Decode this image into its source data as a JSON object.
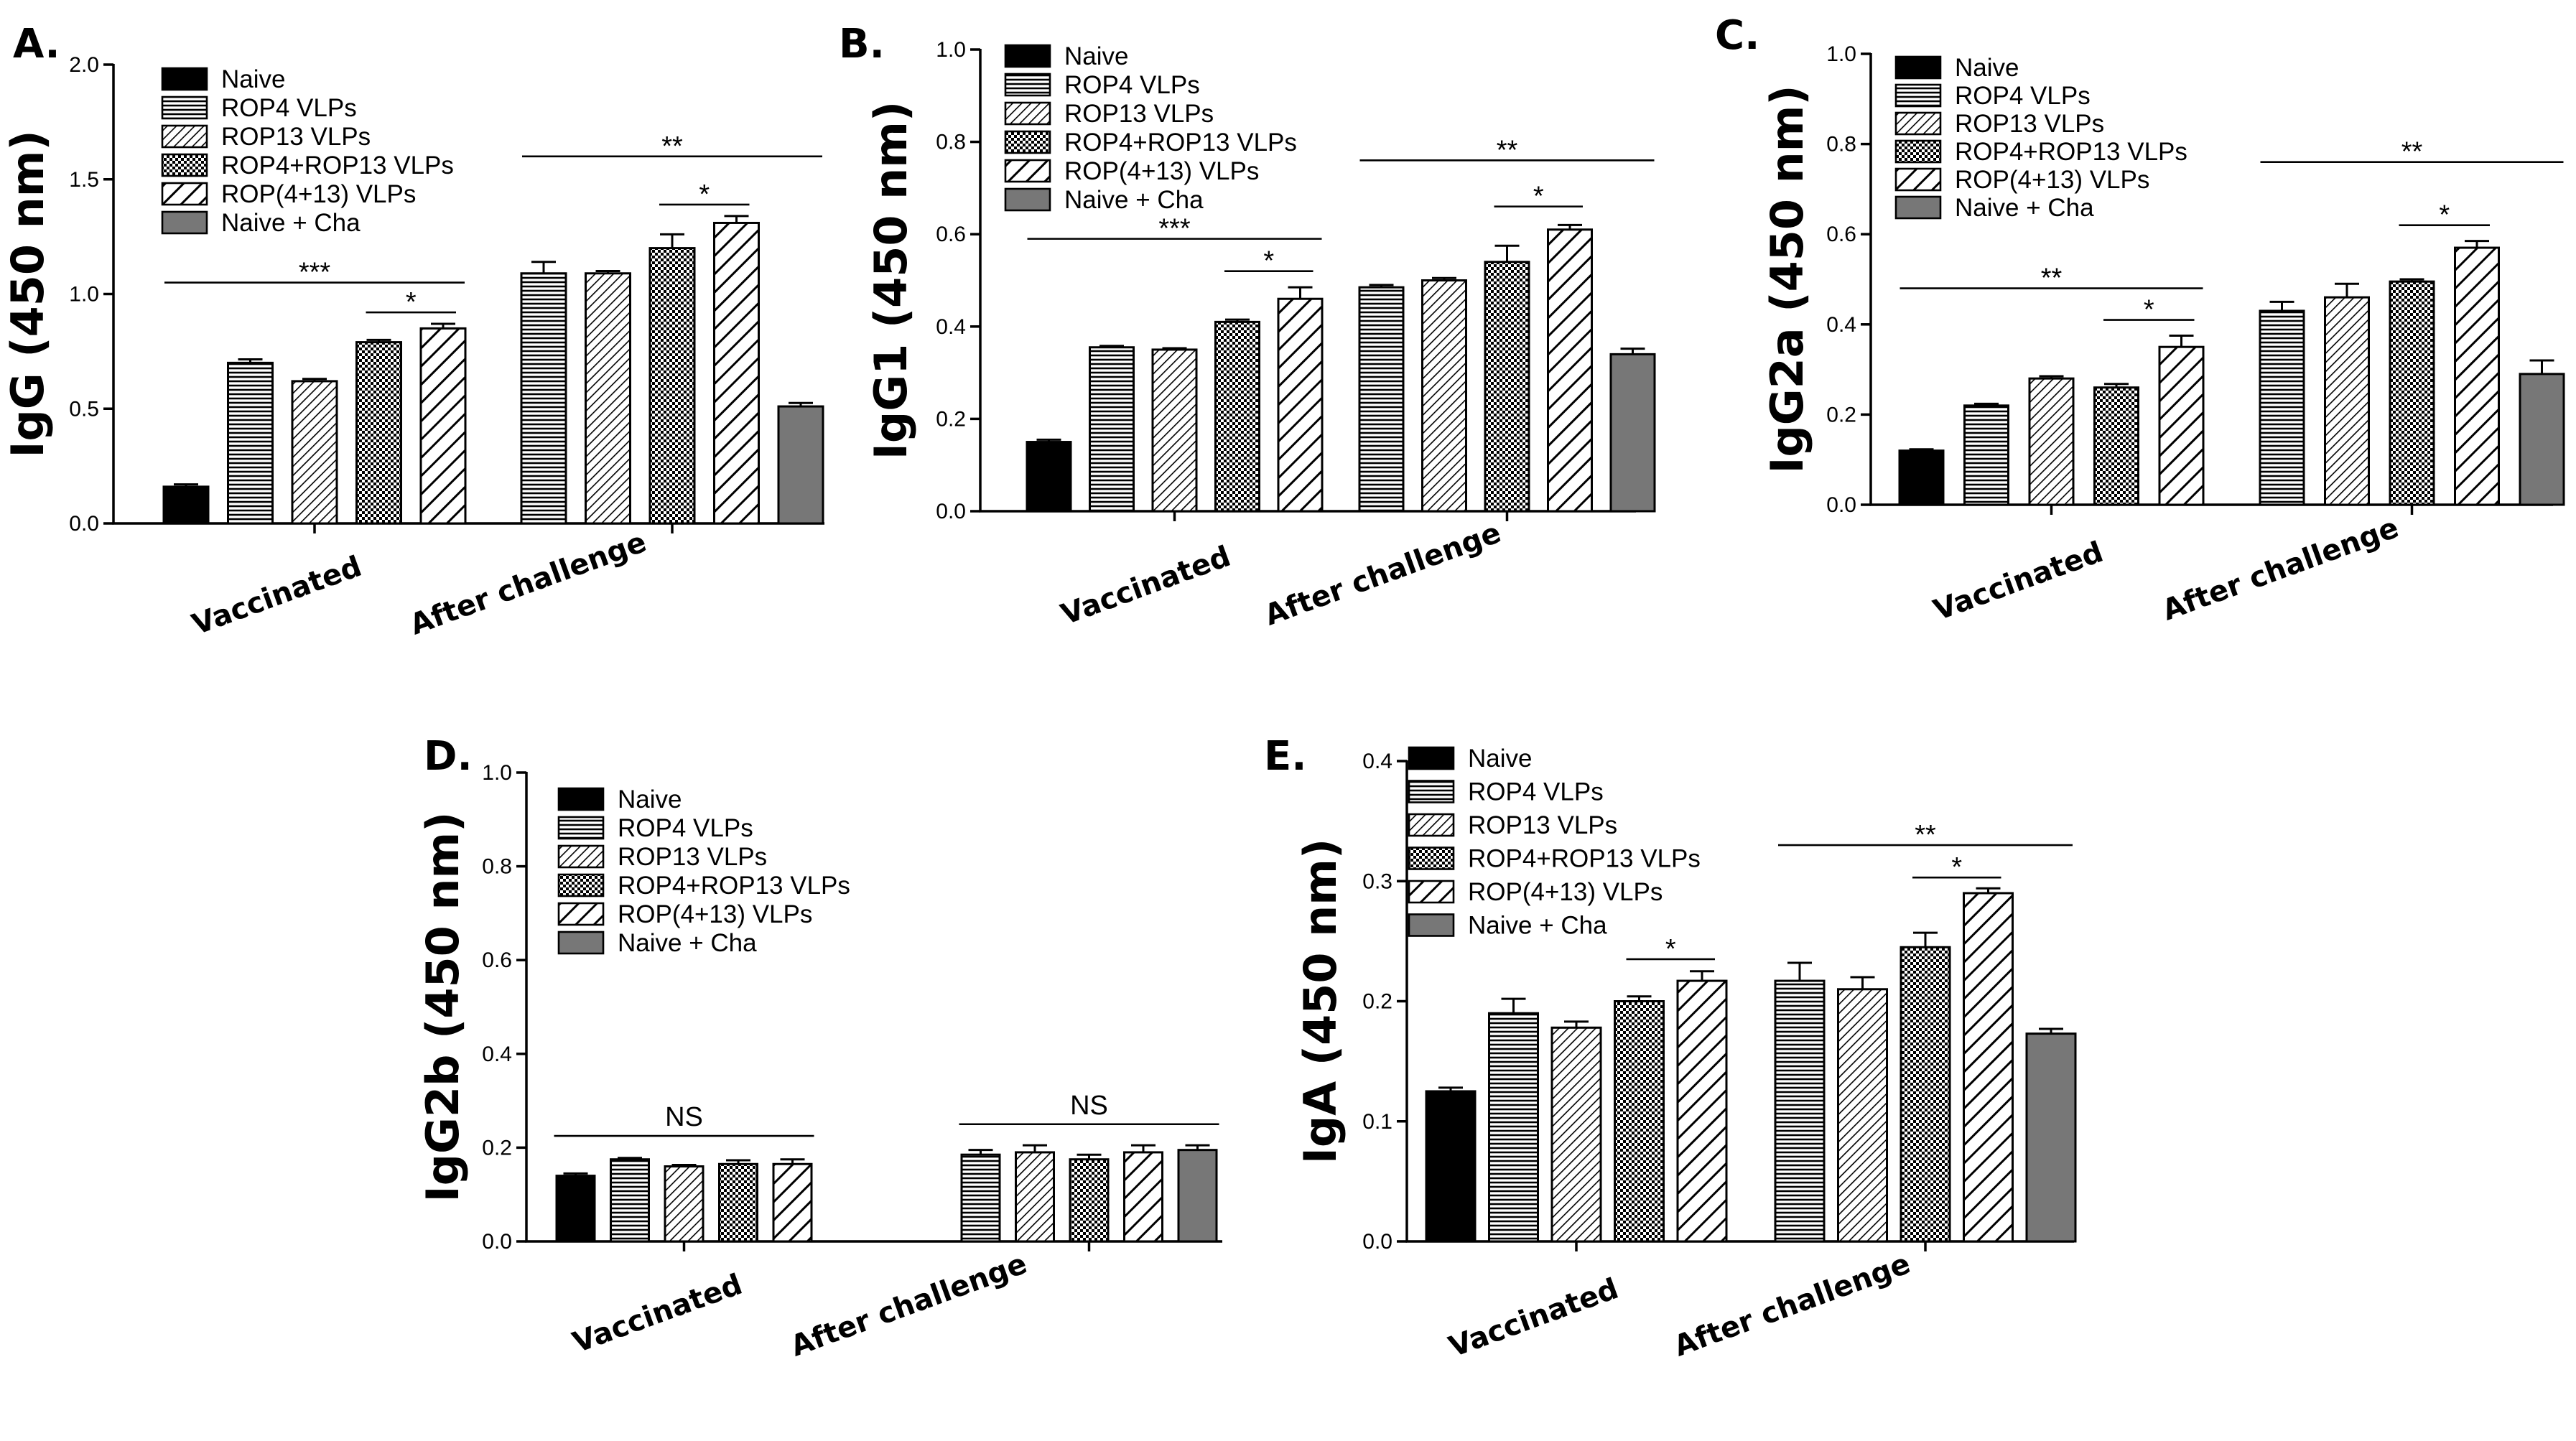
{
  "colors": {
    "naive": "#000000",
    "naive_cha": "#777777",
    "stroke": "#000000"
  },
  "patterns": [
    "solid-black",
    "horizontal-lines",
    "diagonal-fine",
    "crosshatch",
    "diagonal-wide",
    "solid-gray"
  ],
  "chart_data": [
    {
      "type": "bar",
      "panel_label": "A.",
      "ylabel": "IgG (450 nm)",
      "ylim": [
        0,
        2.0
      ],
      "yticks": [
        "0.0",
        "0.5",
        "1.0",
        "1.5",
        "2.0"
      ],
      "yticks_values": [
        0,
        0.5,
        1.0,
        1.5,
        2.0
      ],
      "categories": [
        "Vaccinated",
        "After challenge"
      ],
      "legend": [
        "Naive",
        "ROP4 VLPs",
        "ROP13 VLPs",
        "ROP4+ROP13 VLPs",
        "ROP(4+13) VLPs",
        "Naive + Cha"
      ],
      "groups": [
        {
          "bars": [
            {
              "series": 0,
              "value": 0.16,
              "err": 0.01
            },
            {
              "series": 1,
              "value": 0.7,
              "err": 0.015
            },
            {
              "series": 2,
              "value": 0.62,
              "err": 0.01
            },
            {
              "series": 3,
              "value": 0.79,
              "err": 0.01
            },
            {
              "series": 4,
              "value": 0.85,
              "err": 0.02
            }
          ]
        },
        {
          "bars": [
            {
              "series": 1,
              "value": 1.09,
              "err": 0.05
            },
            {
              "series": 2,
              "value": 1.09,
              "err": 0.01
            },
            {
              "series": 3,
              "value": 1.2,
              "err": 0.06
            },
            {
              "series": 4,
              "value": 1.31,
              "err": 0.03
            },
            {
              "series": 5,
              "value": 0.51,
              "err": 0.015
            }
          ]
        }
      ],
      "annotations": [
        {
          "text": "***",
          "group": 0,
          "from": 0,
          "to": 4,
          "y": 1.05
        },
        {
          "text": "*",
          "group": 0,
          "from": 3,
          "to": 4,
          "y": 0.92
        },
        {
          "text": "**",
          "group": 1,
          "from": 0,
          "to": 4,
          "y": 1.6
        },
        {
          "text": "*",
          "group": 1,
          "from": 2,
          "to": 3,
          "y": 1.39
        }
      ]
    },
    {
      "type": "bar",
      "panel_label": "B.",
      "ylabel": "IgG1 (450 nm)",
      "ylim": [
        0,
        1.0
      ],
      "yticks": [
        "0.0",
        "0.2",
        "0.4",
        "0.6",
        "0.8",
        "1.0"
      ],
      "yticks_values": [
        0,
        0.2,
        0.4,
        0.6,
        0.8,
        1.0
      ],
      "categories": [
        "Vaccinated",
        "After challenge"
      ],
      "legend": [
        "Naive",
        "ROP4 VLPs",
        "ROP13 VLPs",
        "ROP4+ROP13 VLPs",
        "ROP(4+13) VLPs",
        "Naive + Cha"
      ],
      "groups": [
        {
          "bars": [
            {
              "series": 0,
              "value": 0.15,
              "err": 0.005
            },
            {
              "series": 1,
              "value": 0.355,
              "err": 0.003
            },
            {
              "series": 2,
              "value": 0.35,
              "err": 0.003
            },
            {
              "series": 3,
              "value": 0.41,
              "err": 0.005
            },
            {
              "series": 4,
              "value": 0.46,
              "err": 0.025
            }
          ]
        },
        {
          "bars": [
            {
              "series": 1,
              "value": 0.485,
              "err": 0.005
            },
            {
              "series": 2,
              "value": 0.5,
              "err": 0.005
            },
            {
              "series": 3,
              "value": 0.54,
              "err": 0.035
            },
            {
              "series": 4,
              "value": 0.61,
              "err": 0.01
            },
            {
              "series": 5,
              "value": 0.34,
              "err": 0.012
            }
          ]
        }
      ],
      "annotations": [
        {
          "text": "***",
          "group": 0,
          "from": 0,
          "to": 4,
          "y": 0.59
        },
        {
          "text": "*",
          "group": 0,
          "from": 3,
          "to": 4,
          "y": 0.52
        },
        {
          "text": "**",
          "group": 1,
          "from": 0,
          "to": 4,
          "y": 0.76
        },
        {
          "text": "*",
          "group": 1,
          "from": 2,
          "to": 3,
          "y": 0.66
        }
      ]
    },
    {
      "type": "bar",
      "panel_label": "C.",
      "ylabel": "IgG2a (450 nm)",
      "ylim": [
        0,
        1.0
      ],
      "yticks": [
        "0.0",
        "0.2",
        "0.4",
        "0.6",
        "0.8",
        "1.0"
      ],
      "yticks_values": [
        0,
        0.2,
        0.4,
        0.6,
        0.8,
        1.0
      ],
      "categories": [
        "Vaccinated",
        "After challenge"
      ],
      "legend": [
        "Naive",
        "ROP4 VLPs",
        "ROP13 VLPs",
        "ROP4+ROP13 VLPs",
        "ROP(4+13) VLPs",
        "Naive + Cha"
      ],
      "groups": [
        {
          "bars": [
            {
              "series": 0,
              "value": 0.12,
              "err": 0.003
            },
            {
              "series": 1,
              "value": 0.22,
              "err": 0.004
            },
            {
              "series": 2,
              "value": 0.28,
              "err": 0.005
            },
            {
              "series": 3,
              "value": 0.26,
              "err": 0.008
            },
            {
              "series": 4,
              "value": 0.35,
              "err": 0.025
            }
          ]
        },
        {
          "bars": [
            {
              "series": 1,
              "value": 0.43,
              "err": 0.02
            },
            {
              "series": 2,
              "value": 0.46,
              "err": 0.03
            },
            {
              "series": 3,
              "value": 0.495,
              "err": 0.005
            },
            {
              "series": 4,
              "value": 0.57,
              "err": 0.015
            },
            {
              "series": 5,
              "value": 0.29,
              "err": 0.03
            }
          ]
        }
      ],
      "annotations": [
        {
          "text": "**",
          "group": 0,
          "from": 0,
          "to": 4,
          "y": 0.48
        },
        {
          "text": "*",
          "group": 0,
          "from": 3,
          "to": 4,
          "y": 0.41
        },
        {
          "text": "**",
          "group": 1,
          "from": 0,
          "to": 4,
          "y": 0.76
        },
        {
          "text": "*",
          "group": 1,
          "from": 2,
          "to": 3,
          "y": 0.62
        }
      ]
    },
    {
      "type": "bar",
      "panel_label": "D.",
      "ylabel": "IgG2b (450 nm)",
      "ylim": [
        0,
        1.0
      ],
      "yticks": [
        "0.0",
        "0.2",
        "0.4",
        "0.6",
        "0.8",
        "1.0"
      ],
      "yticks_values": [
        0,
        0.2,
        0.4,
        0.6,
        0.8,
        1.0
      ],
      "categories": [
        "Vaccinated",
        "After challenge"
      ],
      "legend": [
        "Naive",
        "ROP4 VLPs",
        "ROP13 VLPs",
        "ROP4+ROP13 VLPs",
        "ROP(4+13) VLPs",
        "Naive + Cha"
      ],
      "groups": [
        {
          "bars": [
            {
              "series": 0,
              "value": 0.14,
              "err": 0.005
            },
            {
              "series": 1,
              "value": 0.175,
              "err": 0.003
            },
            {
              "series": 2,
              "value": 0.16,
              "err": 0.003
            },
            {
              "series": 3,
              "value": 0.165,
              "err": 0.008
            },
            {
              "series": 4,
              "value": 0.165,
              "err": 0.01
            }
          ]
        },
        {
          "bars": [
            {
              "series": 1,
              "value": 0.185,
              "err": 0.01
            },
            {
              "series": 2,
              "value": 0.19,
              "err": 0.015
            },
            {
              "series": 3,
              "value": 0.175,
              "err": 0.01
            },
            {
              "series": 4,
              "value": 0.19,
              "err": 0.015
            },
            {
              "series": 5,
              "value": 0.195,
              "err": 0.01
            }
          ]
        }
      ],
      "annotations": [
        {
          "text": "NS",
          "group": 0,
          "from": 0,
          "to": 4,
          "y": 0.225
        },
        {
          "text": "NS",
          "group": 1,
          "from": 0,
          "to": 4,
          "y": 0.25
        }
      ]
    },
    {
      "type": "bar",
      "panel_label": "E.",
      "ylabel": "IgA (450 nm)",
      "ylim": [
        0,
        0.4
      ],
      "yticks": [
        "0.0",
        "0.1",
        "0.2",
        "0.3",
        "0.4"
      ],
      "yticks_values": [
        0,
        0.1,
        0.2,
        0.3,
        0.4
      ],
      "categories": [
        "Vaccinated",
        "After challenge"
      ],
      "legend": [
        "Naive",
        "ROP4 VLPs",
        "ROP13 VLPs",
        "ROP4+ROP13 VLPs",
        "ROP(4+13) VLPs",
        "Naive + Cha"
      ],
      "groups": [
        {
          "bars": [
            {
              "series": 0,
              "value": 0.125,
              "err": 0.003
            },
            {
              "series": 1,
              "value": 0.19,
              "err": 0.012
            },
            {
              "series": 2,
              "value": 0.178,
              "err": 0.005
            },
            {
              "series": 3,
              "value": 0.2,
              "err": 0.004
            },
            {
              "series": 4,
              "value": 0.217,
              "err": 0.008
            }
          ]
        },
        {
          "bars": [
            {
              "series": 1,
              "value": 0.217,
              "err": 0.015
            },
            {
              "series": 2,
              "value": 0.21,
              "err": 0.01
            },
            {
              "series": 3,
              "value": 0.245,
              "err": 0.012
            },
            {
              "series": 4,
              "value": 0.29,
              "err": 0.004
            },
            {
              "series": 5,
              "value": 0.173,
              "err": 0.004
            }
          ]
        }
      ],
      "annotations": [
        {
          "text": "*",
          "group": 0,
          "from": 3,
          "to": 4,
          "y": 0.235
        },
        {
          "text": "**",
          "group": 1,
          "from": 0,
          "to": 4,
          "y": 0.33
        },
        {
          "text": "*",
          "group": 1,
          "from": 2,
          "to": 3,
          "y": 0.303
        }
      ]
    }
  ]
}
